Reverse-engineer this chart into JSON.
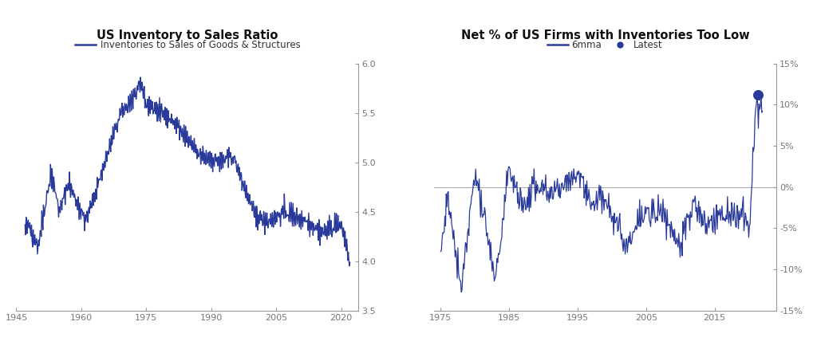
{
  "chart1": {
    "title": "US Inventory to Sales Ratio",
    "legend_label": "Inventories to Sales of Goods & Structures",
    "xlim": [
      1945,
      2024
    ],
    "ylim": [
      3.5,
      6.0
    ],
    "xticks": [
      1945,
      1960,
      1975,
      1990,
      2005,
      2020
    ],
    "yticks": [
      3.5,
      4.0,
      4.5,
      5.0,
      5.5,
      6.0
    ],
    "line_color": "#2a3a9a",
    "line_width": 1.0
  },
  "chart2": {
    "title": "Net % of US Firms with Inventories Too Low",
    "legend_labels": [
      "6mma",
      "Latest"
    ],
    "xlim": [
      1974,
      2024
    ],
    "ylim": [
      -15,
      15
    ],
    "xticks": [
      1975,
      1985,
      1995,
      2005,
      2015
    ],
    "yticks": [
      -15,
      -10,
      -5,
      0,
      5,
      10,
      15
    ],
    "line_color": "#2a3a9a",
    "dot_color": "#2a3a9a",
    "line_width": 0.9,
    "hline_y": 0,
    "latest_x": 2021.3,
    "latest_y": 11.2
  },
  "background_color": "#ffffff",
  "plot_bg_color": "#ffffff",
  "title_fontsize": 10.5,
  "legend_fontsize": 8.5,
  "tick_fontsize": 8,
  "axis_color": "#999999",
  "tick_color": "#777777"
}
